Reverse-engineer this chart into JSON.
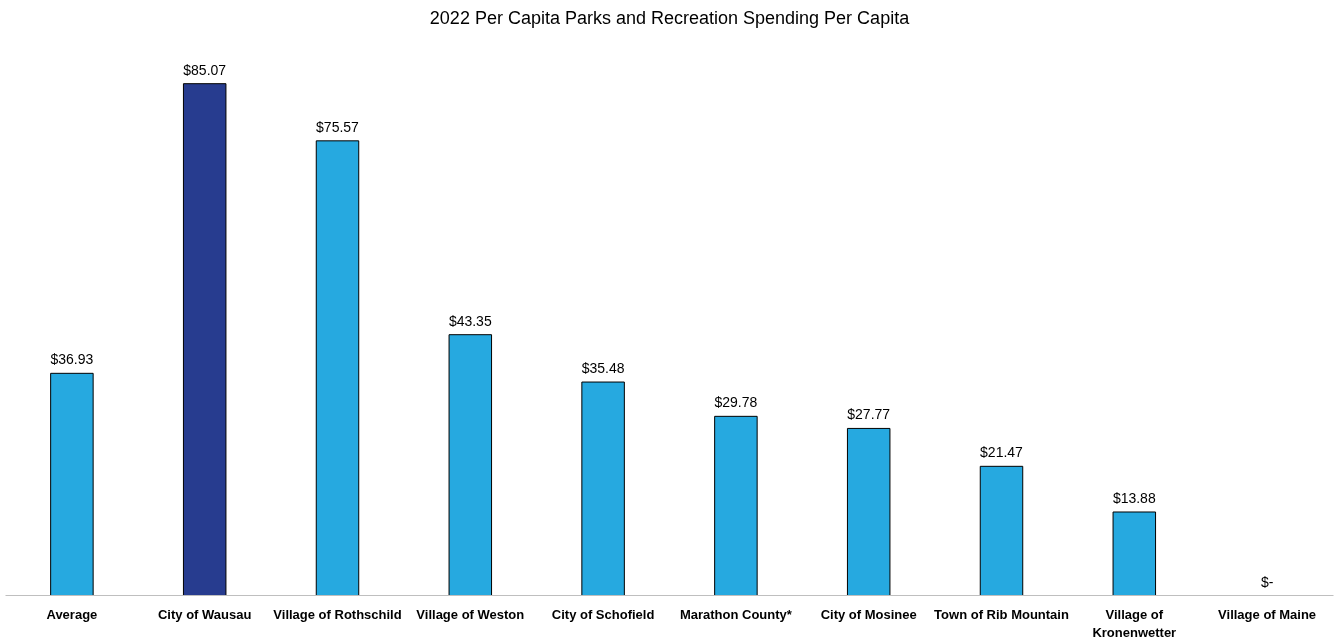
{
  "chart_data": {
    "type": "bar",
    "title": "2022 Per Capita Parks and Recreation Spending Per Capita",
    "categories": [
      "Average",
      "City of Wausau",
      "Village of Rothschild",
      "Village of Weston",
      "City of Schofield",
      "Marathon County*",
      "City of Mosinee",
      "Town of Rib Mountain",
      "Village of Kronenwetter",
      "Village of Maine"
    ],
    "values": [
      36.93,
      85.07,
      75.57,
      43.35,
      35.48,
      29.78,
      27.77,
      21.47,
      13.88,
      0
    ],
    "colors": [
      "#26a9e0",
      "#273c8f",
      "#26a9e0",
      "#26a9e0",
      "#26a9e0",
      "#26a9e0",
      "#26a9e0",
      "#26a9e0",
      "#26a9e0",
      "#26a9e0"
    ],
    "value_labels": [
      "$36.93",
      "$85.07",
      "$75.57",
      "$43.35",
      "$35.48",
      "$29.78",
      "$27.77",
      "$21.47",
      "$13.88",
      "$-"
    ],
    "grid": false
  }
}
